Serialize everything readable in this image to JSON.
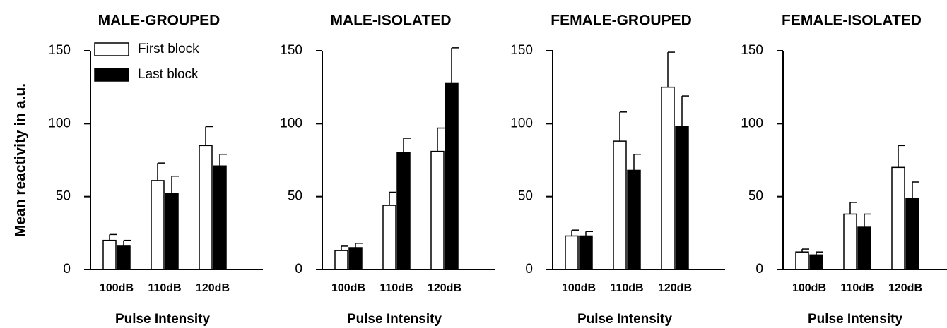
{
  "chart_data": [
    {
      "type": "bar",
      "title": "MALE-GROUPED",
      "ylabel": "Mean reactivity in a.u.",
      "xlabel": "Pulse Intensity",
      "categories": [
        "100dB",
        "110dB",
        "120dB"
      ],
      "ylim": [
        0,
        150
      ],
      "yticks": [
        0,
        50,
        100,
        150
      ],
      "legend": "upper left",
      "series": [
        {
          "name": "First block",
          "color": "#ffffff",
          "values": [
            20,
            61,
            85
          ],
          "errors": [
            4,
            12,
            13
          ]
        },
        {
          "name": "Last block",
          "color": "#000000",
          "values": [
            16,
            52,
            71
          ],
          "errors": [
            4,
            12,
            8
          ]
        }
      ]
    },
    {
      "type": "bar",
      "title": "MALE-ISOLATED",
      "xlabel": "Pulse Intensity",
      "categories": [
        "100dB",
        "110dB",
        "120dB"
      ],
      "ylim": [
        0,
        150
      ],
      "yticks": [
        0,
        50,
        100,
        150
      ],
      "series": [
        {
          "color": "#ffffff",
          "values": [
            13,
            44,
            81
          ],
          "errors": [
            3,
            9,
            16
          ]
        },
        {
          "color": "#000000",
          "values": [
            15,
            80,
            128
          ],
          "errors": [
            3,
            10,
            24
          ]
        }
      ]
    },
    {
      "type": "bar",
      "title": "FEMALE-GROUPED",
      "xlabel": "Pulse Intensity",
      "categories": [
        "100dB",
        "110dB",
        "120dB"
      ],
      "ylim": [
        0,
        150
      ],
      "yticks": [
        0,
        50,
        100,
        150
      ],
      "series": [
        {
          "color": "#ffffff",
          "values": [
            23,
            88,
            125
          ],
          "errors": [
            4,
            20,
            24
          ]
        },
        {
          "color": "#000000",
          "values": [
            23,
            68,
            98
          ],
          "errors": [
            3,
            11,
            21
          ]
        }
      ]
    },
    {
      "type": "bar",
      "title": "FEMALE-ISOLATED",
      "xlabel": "Pulse Intensity",
      "categories": [
        "100dB",
        "110dB",
        "120dB"
      ],
      "ylim": [
        0,
        150
      ],
      "yticks": [
        0,
        50,
        100,
        150
      ],
      "series": [
        {
          "color": "#ffffff",
          "values": [
            12,
            38,
            70
          ],
          "errors": [
            2,
            8,
            15
          ]
        },
        {
          "color": "#000000",
          "values": [
            10,
            29,
            49
          ],
          "errors": [
            2,
            9,
            11
          ]
        }
      ]
    }
  ]
}
